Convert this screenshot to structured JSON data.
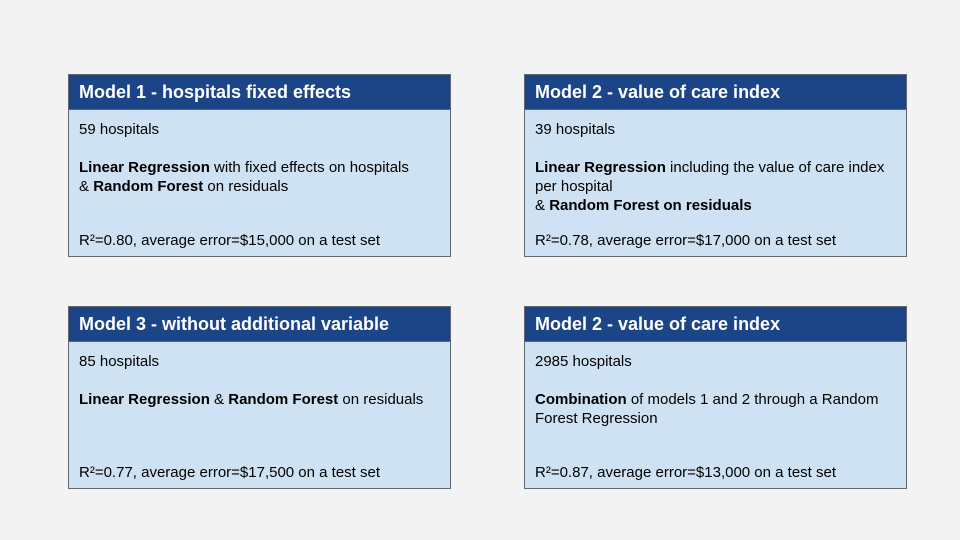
{
  "cards": [
    {
      "title": "Model 1 - hospitals fixed effects",
      "count": "59 hospitals",
      "desc": {
        "b1": "Linear Regression",
        "t1": " with fixed effects on hospitals",
        "t2": "& ",
        "b2": "Random Forest",
        "t3": " on residuals"
      },
      "metric": "R²=0.80, average error=$15,000 on a test set"
    },
    {
      "title": "Model 2 - value of care index",
      "count": "39 hospitals",
      "desc": {
        "b1": "Linear Regression",
        "t1": " including the value of care index per hospital",
        "t2": "& ",
        "b2": "Random Forest on residuals"
      },
      "metric": "R²=0.78, average error=$17,000 on a test set"
    },
    {
      "title": "Model 3 - without additional variable",
      "count": "85 hospitals",
      "desc": {
        "b1": "Linear Regression",
        "t1": " & ",
        "b2": "Random Forest",
        "t2": " on residuals"
      },
      "metric": "R²=0.77, average error=$17,500 on a test set"
    },
    {
      "title": "Model 2 - value of care index",
      "count": "2985 hospitals",
      "desc": {
        "b1": "Combination",
        "t1": " of models 1 and 2 through a Random Forest Regression"
      },
      "metric": "R²=0.87, average error=$13,000 on a test set"
    }
  ]
}
